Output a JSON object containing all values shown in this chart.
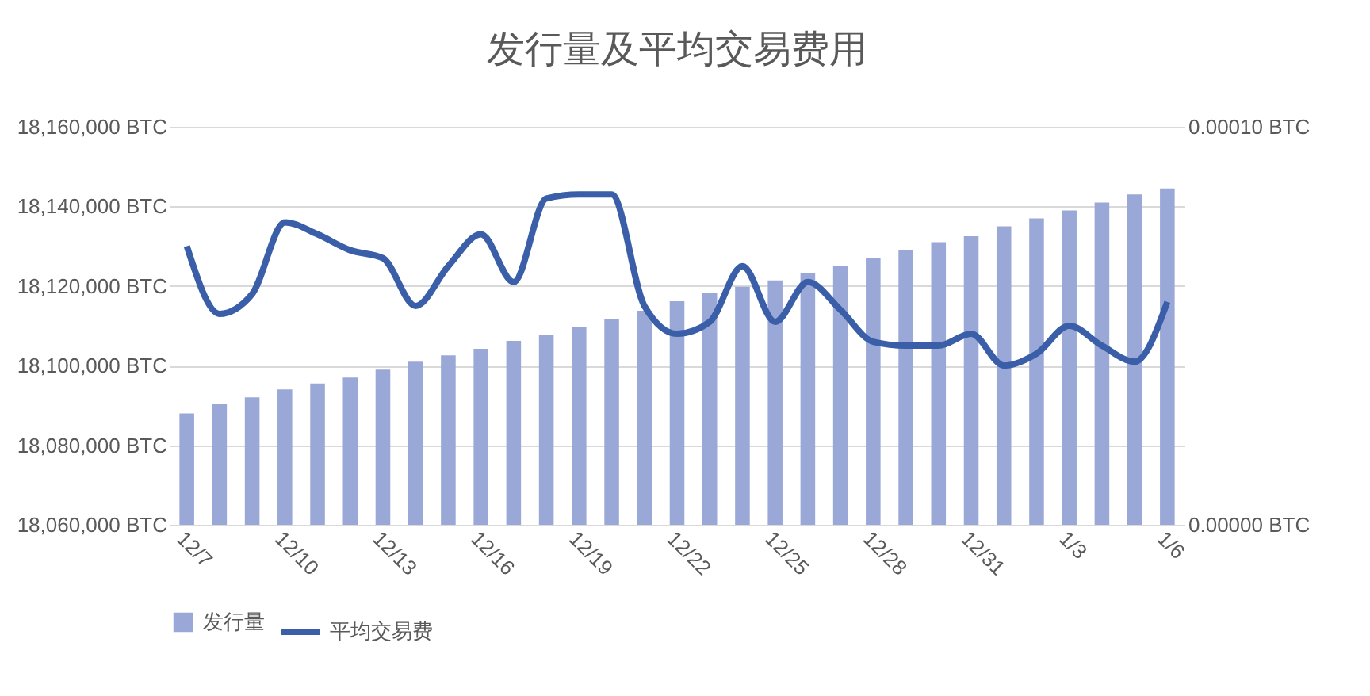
{
  "chart_data": {
    "type": "bar",
    "title": "发行量及平均交易费用",
    "categories": [
      "12/7",
      null,
      null,
      "12/10",
      null,
      null,
      "12/13",
      null,
      null,
      "12/16",
      null,
      null,
      "12/19",
      null,
      null,
      "12/22",
      null,
      null,
      "12/25",
      null,
      null,
      "12/28",
      null,
      null,
      "12/31",
      null,
      null,
      "1/3",
      null,
      null,
      "1/6"
    ],
    "series": [
      {
        "name": "发行量",
        "color": "#9aa8d8",
        "values": [
          18088000,
          18090300,
          18092000,
          18094000,
          18095500,
          18097000,
          18099000,
          18101000,
          18102600,
          18104200,
          18106200,
          18107800,
          18109800,
          18111800,
          18113800,
          18116200,
          18118200,
          18119800,
          18121400,
          18123300,
          18125000,
          18127000,
          18129000,
          18131000,
          18132500,
          18135000,
          18137000,
          18139000,
          18141000,
          18143000,
          18144500
        ]
      },
      {
        "name": "平均交易费",
        "type": "line",
        "axis": "y2",
        "color": "#3a5ea8",
        "values": [
          7e-05,
          5.3e-05,
          5.8e-05,
          7.6e-05,
          7.3e-05,
          6.9e-05,
          6.7e-05,
          5.5e-05,
          6.5e-05,
          7.3e-05,
          6.1e-05,
          8.2e-05,
          8.3e-05,
          8.3e-05,
          5.5e-05,
          4.8e-05,
          5.1e-05,
          6.5e-05,
          5.1e-05,
          6.1e-05,
          5.4e-05,
          4.6e-05,
          4.5e-05,
          4.5e-05,
          4.8e-05,
          4e-05,
          4.3e-05,
          5e-05,
          4.5e-05,
          4.1e-05,
          5.6e-05
        ]
      }
    ],
    "ylim": [
      18060000,
      18160000
    ],
    "yticks": [
      {
        "value": 18060000,
        "label": "18,060,000 BTC"
      },
      {
        "value": 18080000,
        "label": "18,080,000 BTC"
      },
      {
        "value": 18100000,
        "label": "18,100,000 BTC"
      },
      {
        "value": 18120000,
        "label": "18,120,000 BTC"
      },
      {
        "value": 18140000,
        "label": "18,140,000 BTC"
      },
      {
        "value": 18160000,
        "label": "18,160,000 BTC"
      }
    ],
    "y2lim": [
      0,
      0.0001
    ],
    "y2ticks": [
      {
        "value": 0,
        "label": "0.00000 BTC"
      },
      {
        "value": 0.0001,
        "label": "0.00010 BTC"
      }
    ],
    "grid": "y",
    "legend": "bottom",
    "line_style": "solid"
  }
}
